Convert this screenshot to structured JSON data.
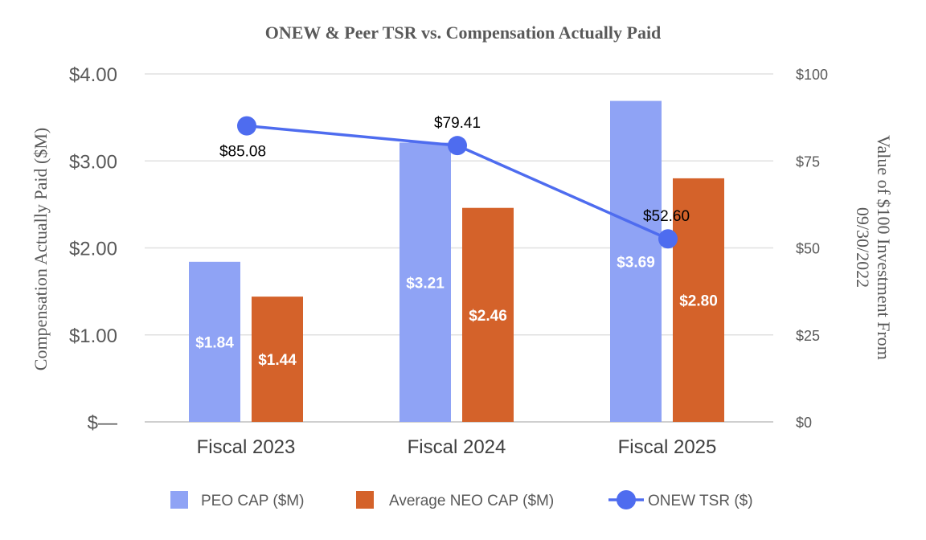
{
  "chart_data": {
    "type": "bar",
    "title": "ONEW & Peer TSR vs. Compensation Actually Paid",
    "categories": [
      "Fiscal 2023",
      "Fiscal 2024",
      "Fiscal 2025"
    ],
    "y_left": {
      "label": "Compensation Actually Paid ($M)",
      "range": [
        0,
        4
      ],
      "ticks": [
        {
          "value": 0,
          "label": "$—"
        },
        {
          "value": 1,
          "label": "$1.00"
        },
        {
          "value": 2,
          "label": "$2.00"
        },
        {
          "value": 3,
          "label": "$3.00"
        },
        {
          "value": 4,
          "label": "$4.00"
        }
      ]
    },
    "y_right": {
      "label_line1": "Value of $100 Investment From",
      "label_line2": "09/30/2022",
      "range": [
        0,
        100
      ],
      "ticks": [
        {
          "value": 0,
          "label": "$0"
        },
        {
          "value": 25,
          "label": "$25"
        },
        {
          "value": 50,
          "label": "$50"
        },
        {
          "value": 75,
          "label": "$75"
        },
        {
          "value": 100,
          "label": "$100"
        }
      ]
    },
    "series": [
      {
        "name": "PEO CAP ($M)",
        "type": "bar",
        "axis": "left",
        "color": "#8FA3F5",
        "values": [
          1.84,
          3.21,
          3.69
        ],
        "labels": [
          "$1.84",
          "$3.21",
          "$3.69"
        ]
      },
      {
        "name": "Average NEO CAP ($M)",
        "type": "bar",
        "axis": "left",
        "color": "#D4622A",
        "values": [
          1.44,
          2.46,
          2.8
        ],
        "labels": [
          "$1.44",
          "$2.46",
          "$2.80"
        ]
      },
      {
        "name": "ONEW TSR ($)",
        "type": "line",
        "axis": "right",
        "color": "#4E6CEF",
        "values": [
          85.08,
          79.41,
          52.6
        ],
        "labels": [
          "$85.08",
          "$79.41",
          "$52.60"
        ]
      }
    ],
    "grid": true,
    "legend_position": "bottom"
  }
}
